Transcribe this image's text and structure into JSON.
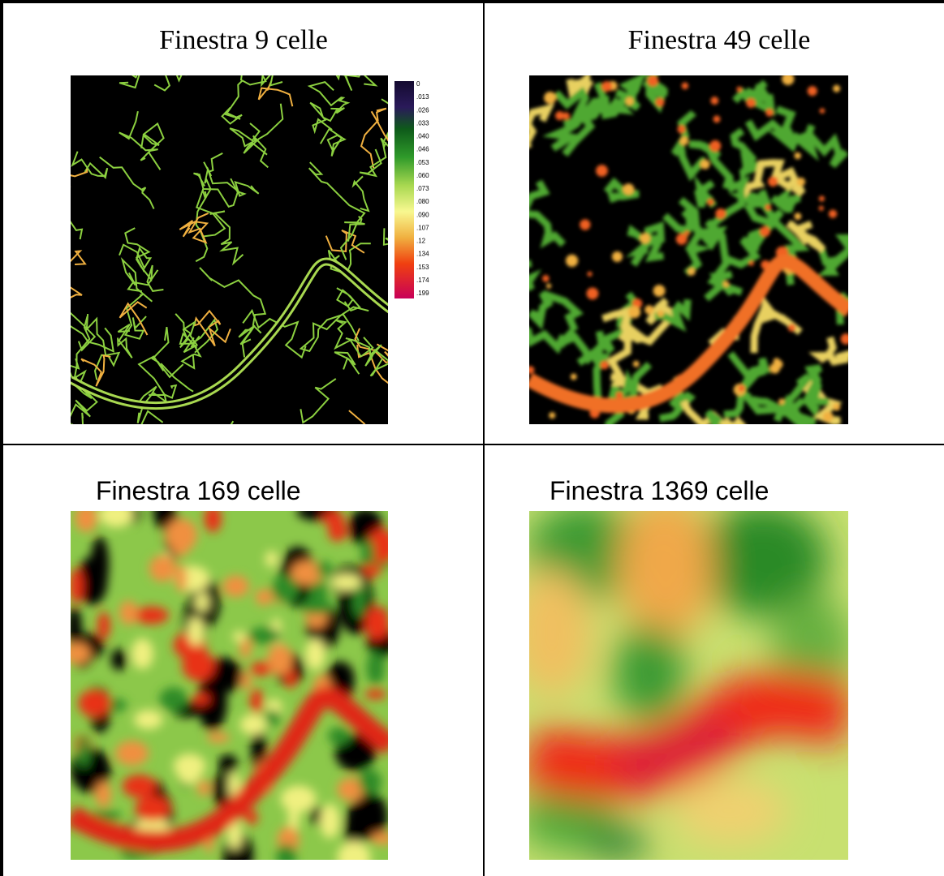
{
  "panels": [
    {
      "title": "Finestra 9 celle"
    },
    {
      "title": "Finestra 49 celle"
    },
    {
      "title": "Finestra 169 celle"
    },
    {
      "title": "Finestra 1369 celle"
    }
  ],
  "legend": {
    "labels": [
      "0",
      ".013",
      ".026",
      ".033",
      ".040",
      ".046",
      ".053",
      ".060",
      ".073",
      ".080",
      ".090",
      ".107",
      ".12",
      ".134",
      ".153",
      ".174",
      ".199"
    ]
  }
}
